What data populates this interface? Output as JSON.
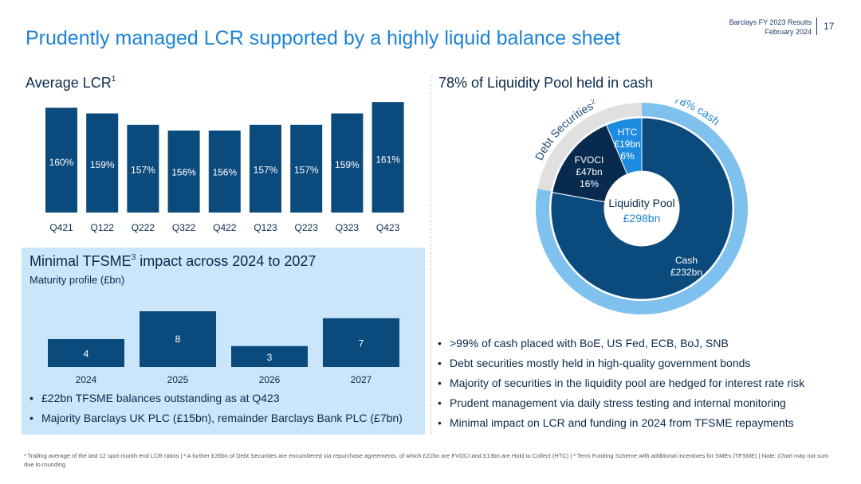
{
  "header": {
    "title": "Prudently managed LCR supported by a highly liquid balance sheet",
    "meta_line1": "Barclays FY 2023 Results",
    "meta_line2": "February 2024",
    "page_number": "17"
  },
  "lcr_section": {
    "title": "Average LCR",
    "footnote_ref": "1"
  },
  "tfsme_section": {
    "title_pre": "Minimal TFSME",
    "footnote_ref": "3",
    "title_post": " impact across 2024 to 2027",
    "subtitle": "Maturity profile (£bn)",
    "bullets": [
      "£22bn TFSME balances outstanding as at Q423",
      "Majority Barclays UK PLC (£15bn), remainder Barclays Bank PLC (£7bn)"
    ]
  },
  "pool_section": {
    "title": "78% of Liquidity Pool held in cash",
    "bullets": [
      ">99% of cash placed with BoE, US Fed, ECB, BoJ, SNB",
      "Debt securities mostly held in high-quality government bonds",
      "Majority of securities in the liquidity pool are hedged for interest rate risk",
      "Prudent management via daily stress testing and internal monitoring",
      "Minimal impact on LCR and funding in 2024 from TFSME repayments"
    ]
  },
  "footnote": "¹ Trailing average of the last 12 spot month end LCR ratios | ² A further £35bn of Debt Securities are encumbered via repurchase agreements, of which £22bn are FVOCI and £13bn are Hold to Collect (HTC) | ³ Term Funding Scheme with additional incentives for SMEs (TFSME) | Note: Chart may not sum due to rounding",
  "chart_data": [
    {
      "type": "bar",
      "title": "Average LCR",
      "categories": [
        "Q421",
        "Q122",
        "Q222",
        "Q322",
        "Q422",
        "Q123",
        "Q223",
        "Q323",
        "Q423"
      ],
      "values": [
        160,
        159,
        157,
        156,
        156,
        157,
        157,
        159,
        161
      ],
      "labels": [
        "160%",
        "159%",
        "157%",
        "156%",
        "156%",
        "157%",
        "157%",
        "159%",
        "161%"
      ],
      "unit": "%",
      "ylim": [
        150,
        162
      ],
      "color": "#0b4a7d"
    },
    {
      "type": "bar",
      "title": "Maturity profile (£bn)",
      "categories": [
        "2024",
        "2025",
        "2026",
        "2027"
      ],
      "values": [
        4,
        8,
        3,
        7
      ],
      "labels": [
        "4",
        "8",
        "3",
        "7"
      ],
      "ylim": [
        0,
        8
      ],
      "color": "#0b4a7d"
    },
    {
      "type": "pie",
      "title": "Liquidity Pool",
      "center_label": "Liquidity Pool",
      "center_value": "£298bn",
      "slices": [
        {
          "name": "Cash",
          "value_label": "£232bn",
          "value": 232,
          "color": "#0b4a7d"
        },
        {
          "name": "FVOCI",
          "value_label": "£47bn",
          "pct_label": "16%",
          "value": 47,
          "color": "#082a4e"
        },
        {
          "name": "HTC",
          "value_label": "£19bn",
          "pct_label": "6%",
          "value": 19,
          "color": "#1d8be0"
        }
      ],
      "outer_ring": [
        {
          "label": "78% cash",
          "value": 78,
          "color": "#7fc1ee"
        },
        {
          "label": "Debt Securities",
          "footnote_ref": "2",
          "value": 22,
          "color": "#e0e0e0"
        }
      ]
    }
  ]
}
